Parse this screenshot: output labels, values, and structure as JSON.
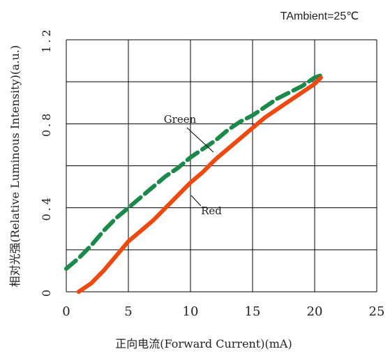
{
  "chart_data": {
    "type": "line",
    "annotation": "TAmbient=25℃",
    "xlabel": "正向电流(Forward Current)(mA)",
    "ylabel": "相对光强(Relative Luminous Intensity)(a.u.)",
    "xlim": [
      0,
      25
    ],
    "ylim": [
      0,
      1.2
    ],
    "x_ticks": [
      "0",
      "5",
      "10",
      "15",
      "20",
      "25"
    ],
    "y_ticks": [
      "0",
      "0.4",
      "0.8",
      "1.2"
    ],
    "y_tick_values": [
      0,
      0.4,
      0.8,
      1.2
    ],
    "x_tick_values": [
      0,
      5,
      10,
      15,
      20,
      25
    ],
    "grid": true,
    "series": [
      {
        "name": "Green",
        "color": "#1a8a4a",
        "style": "dashed",
        "x": [
          0,
          1,
          2,
          3,
          4,
          5,
          6,
          7,
          8,
          9,
          10,
          11,
          12,
          13,
          14,
          15,
          16,
          17,
          18,
          19,
          20,
          20.5
        ],
        "values": [
          0.11,
          0.16,
          0.22,
          0.29,
          0.35,
          0.4,
          0.45,
          0.5,
          0.55,
          0.59,
          0.64,
          0.68,
          0.72,
          0.77,
          0.81,
          0.84,
          0.88,
          0.92,
          0.95,
          0.98,
          1.02,
          1.03
        ]
      },
      {
        "name": "Red",
        "color": "#ee4a10",
        "style": "solid",
        "x": [
          1,
          2,
          3,
          4,
          5,
          6,
          7,
          8,
          9,
          10,
          11,
          12,
          13,
          14,
          15,
          16,
          17,
          18,
          19,
          20,
          20.5
        ],
        "values": [
          0.0,
          0.04,
          0.1,
          0.17,
          0.24,
          0.29,
          0.34,
          0.4,
          0.46,
          0.52,
          0.57,
          0.63,
          0.68,
          0.73,
          0.78,
          0.83,
          0.87,
          0.91,
          0.95,
          0.99,
          1.02
        ]
      }
    ]
  }
}
